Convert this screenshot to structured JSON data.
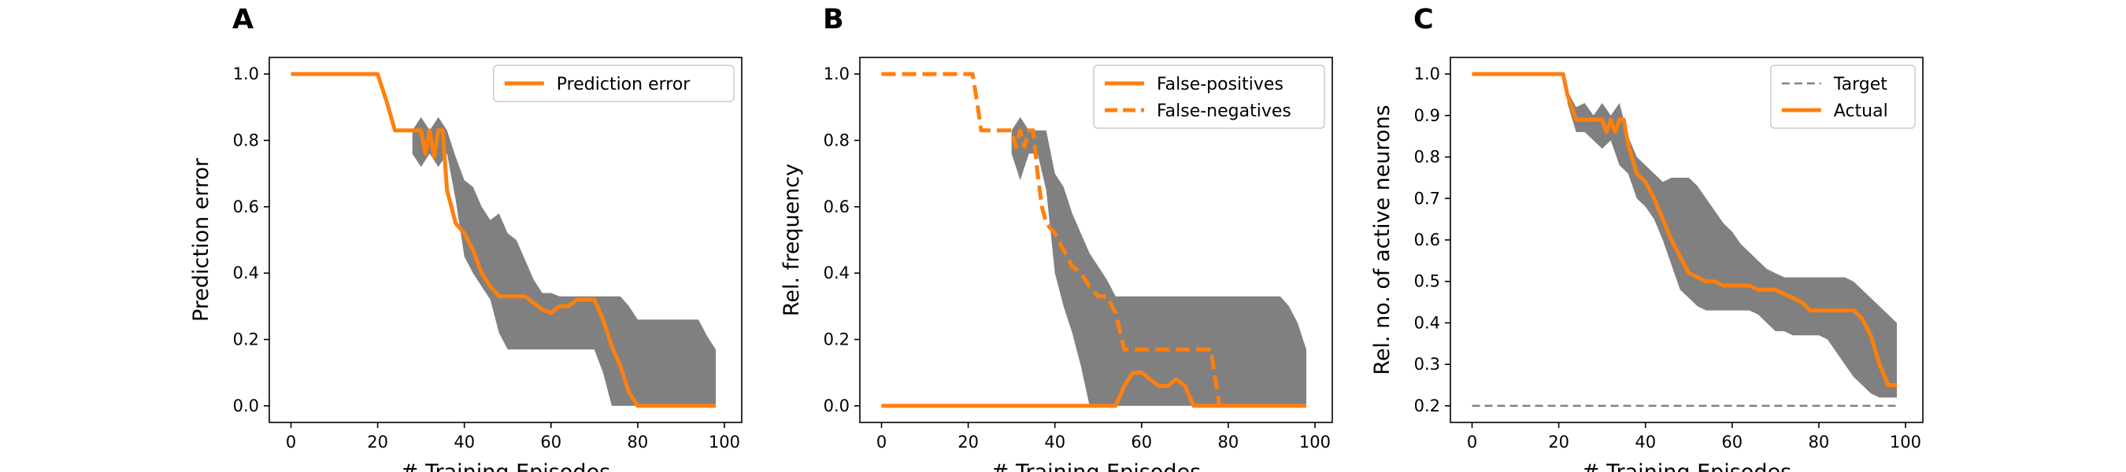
{
  "colors": {
    "accent": "#ff7f0e",
    "band": "#808080",
    "target": "#808080",
    "axes": "#000000",
    "background": "#ffffff"
  },
  "chart_data": [
    {
      "type": "line",
      "panel_label": "A",
      "xlabel": "# Training Episodes",
      "ylabel": "Prediction error",
      "xlim": [
        -5,
        104
      ],
      "ylim": [
        -0.05,
        1.05
      ],
      "xticks": [
        0,
        20,
        40,
        60,
        80,
        100
      ],
      "yticks": [
        0.0,
        0.2,
        0.4,
        0.6,
        0.8,
        1.0
      ],
      "tick_decimals": 1,
      "grid": false,
      "legend_position": "top-right",
      "band": {
        "x": [
          28,
          30,
          32,
          34,
          36,
          38,
          40,
          42,
          44,
          46,
          48,
          50,
          52,
          54,
          56,
          58,
          60,
          62,
          64,
          66,
          68,
          70,
          72,
          74,
          76,
          78,
          80,
          82,
          84,
          86,
          88,
          90,
          92,
          94,
          96,
          98
        ],
        "upper": [
          0.83,
          0.87,
          0.83,
          0.87,
          0.83,
          0.75,
          0.68,
          0.66,
          0.6,
          0.56,
          0.58,
          0.52,
          0.5,
          0.44,
          0.38,
          0.34,
          0.34,
          0.33,
          0.33,
          0.33,
          0.33,
          0.33,
          0.33,
          0.33,
          0.33,
          0.3,
          0.26,
          0.26,
          0.26,
          0.26,
          0.26,
          0.26,
          0.26,
          0.26,
          0.21,
          0.17
        ],
        "lower": [
          0.76,
          0.72,
          0.76,
          0.72,
          0.76,
          0.62,
          0.45,
          0.4,
          0.36,
          0.32,
          0.22,
          0.17,
          0.17,
          0.17,
          0.17,
          0.17,
          0.17,
          0.17,
          0.17,
          0.17,
          0.17,
          0.17,
          0.1,
          0.0,
          0.0,
          0.0,
          0.0,
          0.0,
          0.0,
          0.0,
          0.0,
          0.0,
          0.0,
          0.0,
          0.0,
          0.0
        ]
      },
      "series": [
        {
          "name": "Prediction error",
          "style": "solid",
          "x": [
            0,
            2,
            4,
            6,
            8,
            10,
            12,
            14,
            16,
            18,
            20,
            22,
            24,
            26,
            28,
            30,
            31,
            32,
            33,
            34,
            35,
            36,
            38,
            40,
            42,
            44,
            46,
            48,
            50,
            52,
            54,
            56,
            58,
            60,
            62,
            64,
            66,
            68,
            70,
            72,
            74,
            76,
            78,
            80,
            82,
            84,
            86,
            88,
            90,
            92,
            94,
            96,
            98
          ],
          "y": [
            1.0,
            1.0,
            1.0,
            1.0,
            1.0,
            1.0,
            1.0,
            1.0,
            1.0,
            1.0,
            1.0,
            0.92,
            0.83,
            0.83,
            0.83,
            0.83,
            0.76,
            0.83,
            0.75,
            0.83,
            0.83,
            0.65,
            0.55,
            0.52,
            0.47,
            0.4,
            0.36,
            0.33,
            0.33,
            0.33,
            0.33,
            0.31,
            0.29,
            0.28,
            0.3,
            0.3,
            0.32,
            0.32,
            0.32,
            0.26,
            0.18,
            0.12,
            0.04,
            0.0,
            0.0,
            0.0,
            0.0,
            0.0,
            0.0,
            0.0,
            0.0,
            0.0,
            0.0
          ]
        }
      ]
    },
    {
      "type": "line",
      "panel_label": "B",
      "xlabel": "# Training Episodes",
      "ylabel": "Rel. frequency",
      "xlim": [
        -5,
        104
      ],
      "ylim": [
        -0.05,
        1.05
      ],
      "xticks": [
        0,
        20,
        40,
        60,
        80,
        100
      ],
      "yticks": [
        0.0,
        0.2,
        0.4,
        0.6,
        0.8,
        1.0
      ],
      "tick_decimals": 1,
      "grid": false,
      "legend_position": "top-right",
      "band": {
        "x": [
          30,
          32,
          34,
          36,
          38,
          40,
          42,
          44,
          46,
          48,
          50,
          52,
          54,
          56,
          58,
          60,
          62,
          64,
          66,
          68,
          70,
          72,
          74,
          76,
          78,
          80,
          82,
          84,
          86,
          88,
          90,
          92,
          94,
          96,
          98
        ],
        "upper": [
          0.83,
          0.87,
          0.83,
          0.83,
          0.83,
          0.7,
          0.66,
          0.58,
          0.52,
          0.46,
          0.42,
          0.38,
          0.33,
          0.33,
          0.33,
          0.33,
          0.33,
          0.33,
          0.33,
          0.33,
          0.33,
          0.33,
          0.33,
          0.33,
          0.33,
          0.33,
          0.33,
          0.33,
          0.33,
          0.33,
          0.33,
          0.33,
          0.3,
          0.25,
          0.17
        ],
        "lower": [
          0.76,
          0.68,
          0.76,
          0.76,
          0.65,
          0.4,
          0.3,
          0.22,
          0.12,
          0.0,
          0.0,
          0.0,
          0.0,
          0.0,
          0.0,
          0.0,
          0.0,
          0.0,
          0.0,
          0.0,
          0.0,
          0.0,
          0.0,
          0.0,
          0.0,
          0.0,
          0.0,
          0.0,
          0.0,
          0.0,
          0.0,
          0.0,
          0.0,
          0.0,
          0.0
        ]
      },
      "series": [
        {
          "name": "False-positives",
          "style": "solid",
          "x": [
            0,
            10,
            20,
            30,
            40,
            50,
            54,
            56,
            58,
            60,
            62,
            64,
            66,
            68,
            70,
            72,
            74,
            76,
            80,
            90,
            98
          ],
          "y": [
            0.0,
            0.0,
            0.0,
            0.0,
            0.0,
            0.0,
            0.0,
            0.06,
            0.1,
            0.1,
            0.08,
            0.06,
            0.06,
            0.08,
            0.06,
            0.0,
            0.0,
            0.0,
            0.0,
            0.0,
            0.0
          ]
        },
        {
          "name": "False-negatives",
          "style": "dashed",
          "x": [
            0,
            4,
            8,
            12,
            16,
            20,
            21,
            22,
            23,
            24,
            26,
            28,
            30,
            31,
            32,
            33,
            34,
            35,
            36,
            37,
            38,
            40,
            42,
            44,
            46,
            48,
            50,
            52,
            54,
            56,
            58,
            60,
            62,
            64,
            66,
            68,
            70,
            72,
            74,
            76,
            77,
            78
          ],
          "y": [
            1.0,
            1.0,
            1.0,
            1.0,
            1.0,
            1.0,
            1.0,
            0.92,
            0.83,
            0.83,
            0.83,
            0.83,
            0.83,
            0.78,
            0.83,
            0.78,
            0.83,
            0.83,
            0.7,
            0.6,
            0.55,
            0.52,
            0.47,
            0.42,
            0.4,
            0.36,
            0.33,
            0.33,
            0.28,
            0.17,
            0.17,
            0.17,
            0.17,
            0.17,
            0.17,
            0.17,
            0.17,
            0.17,
            0.17,
            0.17,
            0.08,
            0.0
          ]
        }
      ]
    },
    {
      "type": "line",
      "panel_label": "C",
      "xlabel": "# Training Episodes",
      "ylabel": "Rel. no. of active neurons",
      "xlim": [
        -5,
        104
      ],
      "ylim": [
        0.16,
        1.04
      ],
      "xticks": [
        0,
        20,
        40,
        60,
        80,
        100
      ],
      "yticks": [
        0.2,
        0.3,
        0.4,
        0.5,
        0.6,
        0.7,
        0.8,
        0.9,
        1.0
      ],
      "tick_decimals": 1,
      "grid": false,
      "legend_position": "top-right",
      "band": {
        "x": [
          22,
          24,
          26,
          28,
          30,
          32,
          34,
          36,
          38,
          40,
          42,
          44,
          46,
          48,
          50,
          52,
          54,
          56,
          58,
          60,
          62,
          64,
          66,
          68,
          70,
          72,
          74,
          76,
          78,
          80,
          82,
          84,
          86,
          88,
          90,
          92,
          94,
          96,
          98
        ],
        "upper": [
          0.96,
          0.92,
          0.93,
          0.9,
          0.93,
          0.9,
          0.93,
          0.85,
          0.8,
          0.78,
          0.76,
          0.74,
          0.75,
          0.75,
          0.75,
          0.73,
          0.7,
          0.67,
          0.64,
          0.62,
          0.59,
          0.57,
          0.55,
          0.53,
          0.52,
          0.51,
          0.51,
          0.51,
          0.51,
          0.51,
          0.51,
          0.51,
          0.51,
          0.5,
          0.48,
          0.46,
          0.44,
          0.42,
          0.4
        ],
        "lower": [
          0.93,
          0.86,
          0.86,
          0.84,
          0.82,
          0.84,
          0.78,
          0.76,
          0.7,
          0.68,
          0.65,
          0.6,
          0.54,
          0.48,
          0.46,
          0.44,
          0.43,
          0.43,
          0.43,
          0.43,
          0.43,
          0.43,
          0.42,
          0.4,
          0.38,
          0.38,
          0.37,
          0.37,
          0.37,
          0.37,
          0.36,
          0.33,
          0.3,
          0.27,
          0.25,
          0.23,
          0.22,
          0.22,
          0.22
        ]
      },
      "series": [
        {
          "name": "Target",
          "style": "dashed-gray",
          "x": [
            0,
            98
          ],
          "y": [
            0.2,
            0.2
          ]
        },
        {
          "name": "Actual",
          "style": "solid",
          "x": [
            0,
            2,
            4,
            6,
            8,
            10,
            12,
            14,
            16,
            18,
            20,
            21,
            22,
            24,
            26,
            28,
            30,
            31,
            32,
            33,
            34,
            35,
            36,
            38,
            40,
            42,
            44,
            46,
            48,
            50,
            52,
            54,
            56,
            58,
            60,
            62,
            64,
            66,
            68,
            70,
            72,
            74,
            76,
            78,
            80,
            82,
            84,
            86,
            88,
            90,
            92,
            94,
            96,
            98
          ],
          "y": [
            1.0,
            1.0,
            1.0,
            1.0,
            1.0,
            1.0,
            1.0,
            1.0,
            1.0,
            1.0,
            1.0,
            1.0,
            0.95,
            0.89,
            0.89,
            0.89,
            0.89,
            0.86,
            0.89,
            0.86,
            0.89,
            0.89,
            0.83,
            0.76,
            0.74,
            0.7,
            0.65,
            0.6,
            0.56,
            0.52,
            0.51,
            0.5,
            0.5,
            0.49,
            0.49,
            0.49,
            0.49,
            0.48,
            0.48,
            0.48,
            0.47,
            0.46,
            0.45,
            0.43,
            0.43,
            0.43,
            0.43,
            0.43,
            0.43,
            0.41,
            0.37,
            0.3,
            0.25,
            0.25
          ]
        }
      ]
    }
  ]
}
